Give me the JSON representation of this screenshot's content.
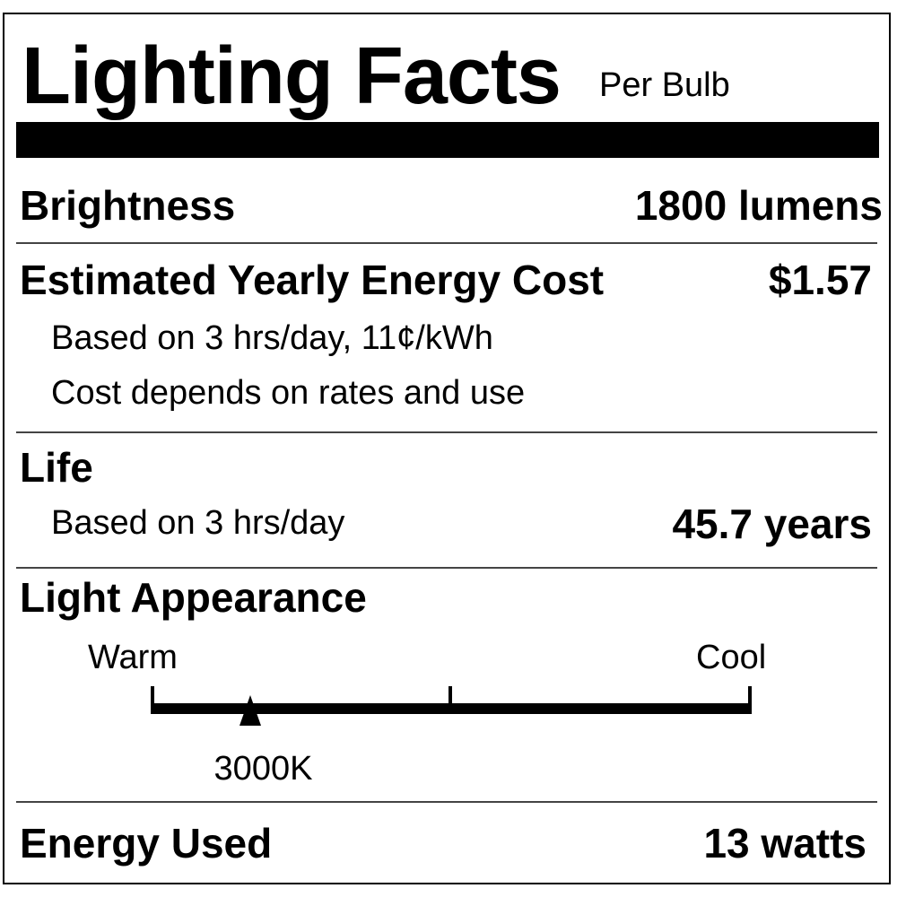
{
  "header": {
    "title": "Lighting Facts",
    "subtitle": "Per Bulb"
  },
  "brightness": {
    "label": "Brightness",
    "value": "1800 lumens"
  },
  "energy_cost": {
    "label": "Estimated Yearly Energy Cost",
    "value": "$1.57",
    "note1": "Based on 3 hrs/day, 11¢/kWh",
    "note2": "Cost depends on rates and use"
  },
  "life": {
    "label": "Life",
    "note": "Based on 3 hrs/day",
    "value": "45.7 years"
  },
  "appearance": {
    "label": "Light Appearance",
    "warm_label": "Warm",
    "cool_label": "Cool",
    "value": "3000K",
    "scale_position": 0.165
  },
  "energy_used": {
    "label": "Energy Used",
    "value": "13 watts"
  }
}
